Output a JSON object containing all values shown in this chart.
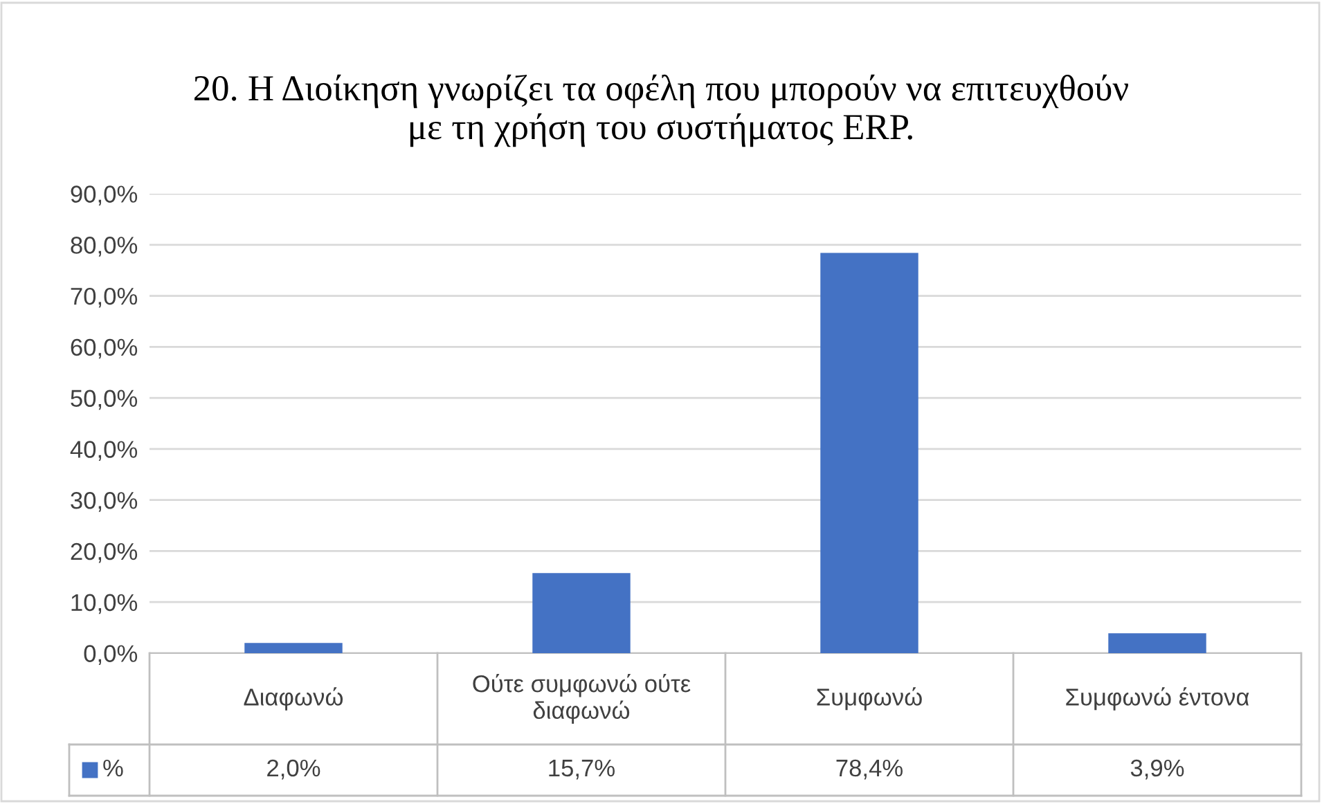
{
  "chart_data": {
    "type": "bar",
    "title": "20. Η Διοίκηση γνωρίζει τα οφέλη που μπορούν να επιτευχθούν με τη χρήση του συστήματος ERP.",
    "categories": [
      "Διαφωνώ",
      "Ούτε συμφωνώ ούτε διαφωνώ",
      "Συμφωνώ",
      "Συμφωνώ έντονα"
    ],
    "series": [
      {
        "name": "%",
        "color": "#4472c4",
        "values": [
          2.0,
          15.7,
          78.4,
          3.9
        ],
        "value_labels": [
          "2,0%",
          "15,7%",
          "78,4%",
          "3,9%"
        ]
      }
    ],
    "ylim": [
      0,
      90
    ],
    "yticks": [
      {
        "value": 0,
        "label": "0,0%"
      },
      {
        "value": 10,
        "label": "10,0%"
      },
      {
        "value": 20,
        "label": "20,0%"
      },
      {
        "value": 30,
        "label": "30,0%"
      },
      {
        "value": 40,
        "label": "40,0%"
      },
      {
        "value": 50,
        "label": "50,0%"
      },
      {
        "value": 60,
        "label": "60,0%"
      },
      {
        "value": 70,
        "label": "70,0%"
      },
      {
        "value": 80,
        "label": "80,0%"
      },
      {
        "value": 90,
        "label": "90,0%"
      }
    ],
    "grid": "y",
    "legend": "bottom left"
  }
}
